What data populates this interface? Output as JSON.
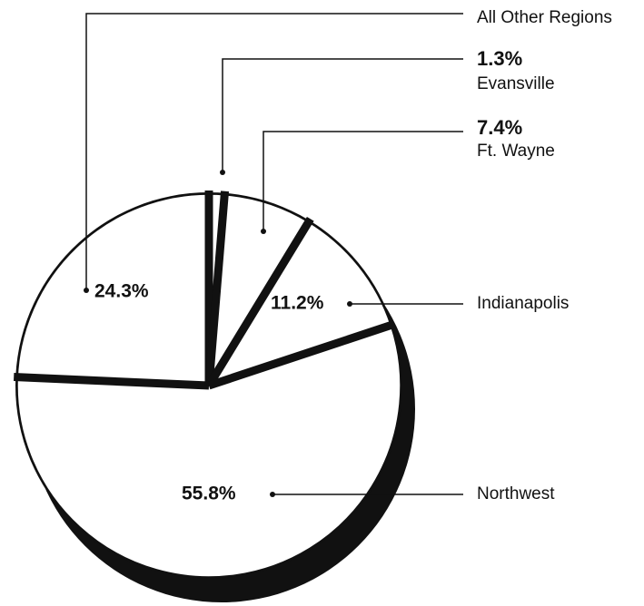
{
  "chart_data": {
    "type": "pie",
    "categories": [
      "All Other Regions",
      "Evansville",
      "Ft. Wayne",
      "Indianapolis",
      "Northwest"
    ],
    "values": [
      24.3,
      1.3,
      7.4,
      11.2,
      55.8
    ],
    "value_labels": [
      "24.3%",
      "1.3%",
      "7.4%",
      "11.2%",
      "55.8%"
    ],
    "color": "#ffffff"
  }
}
